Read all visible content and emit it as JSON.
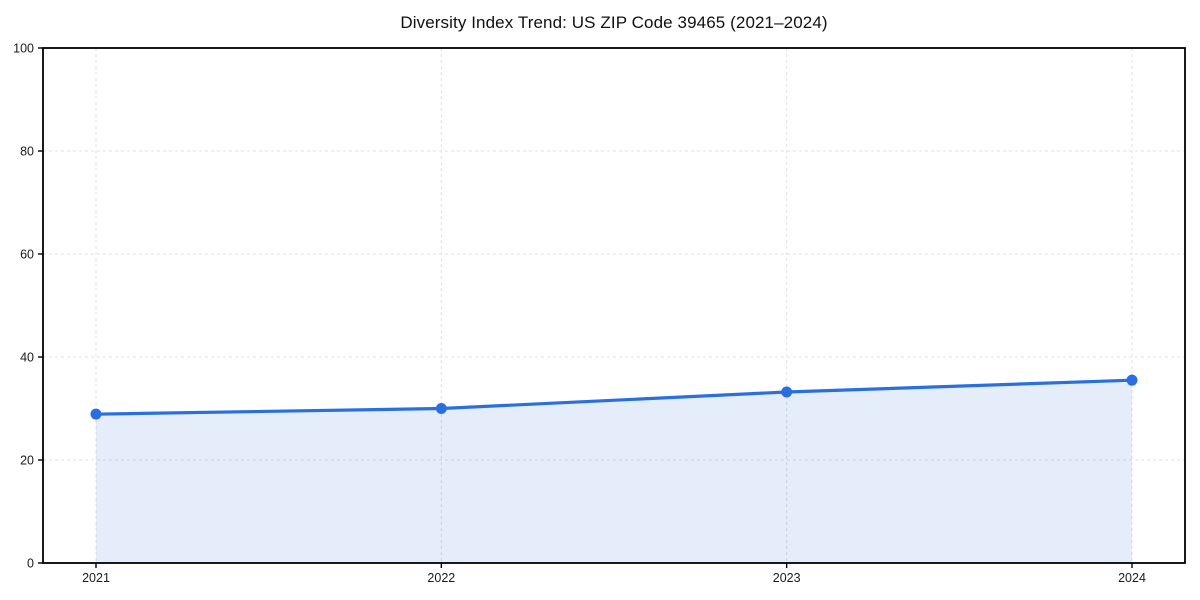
{
  "chart_data": {
    "type": "area",
    "title": "Diversity Index Trend: US ZIP Code 39465 (2021–2024)",
    "categories": [
      "2021",
      "2022",
      "2023",
      "2024"
    ],
    "series": [
      {
        "name": "Diversity Index",
        "values": [
          28.9,
          30.0,
          33.2,
          35.5
        ]
      }
    ],
    "xlabel": "",
    "ylabel": "",
    "ylim": [
      0,
      100
    ],
    "yticks": [
      0,
      20,
      40,
      60,
      80,
      100
    ],
    "grid": true,
    "grid_style": "dashed",
    "legend": false,
    "colors": {
      "line": "#2a6fe0",
      "marker": "#2a6fe0",
      "fill": "rgba(42,111,224,0.12)",
      "grid": "#e1e1e1",
      "axis": "#000000",
      "text": "#1a1a1a",
      "background": "#ffffff"
    }
  }
}
